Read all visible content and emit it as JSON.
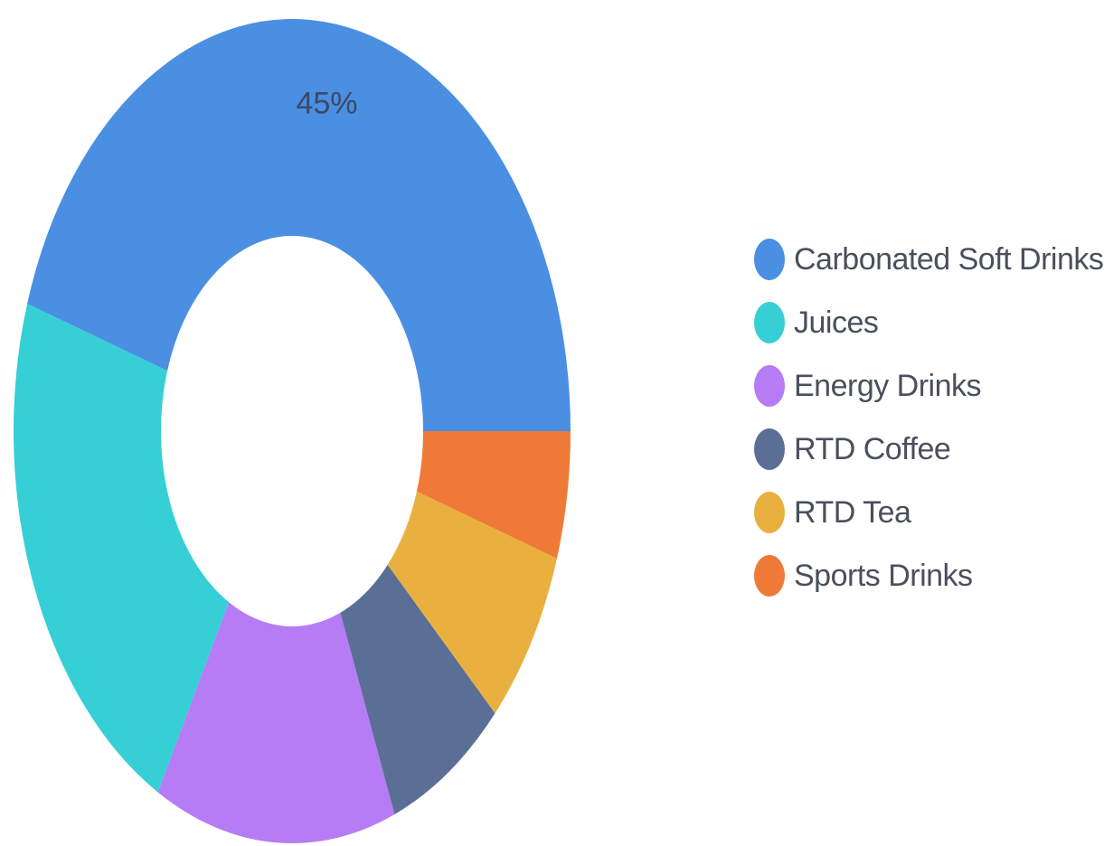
{
  "chart_data": {
    "type": "pie",
    "variant": "donut",
    "title": "",
    "categories": [
      "Carbonated Soft Drinks",
      "Juices",
      "Energy Drinks",
      "RTD Coffee",
      "RTD Tea",
      "Sports Drinks"
    ],
    "values": [
      45,
      22,
      14,
      7,
      7,
      5
    ],
    "unit": "%",
    "colors": [
      "#4a8fe2",
      "#36cfd6",
      "#b57cf5",
      "#5b6f96",
      "#e9b040",
      "#ef7a38"
    ],
    "data_labels": [
      "45%",
      "",
      "",
      "",
      "",
      ""
    ],
    "legend": {
      "position": "right",
      "entries": [
        "Carbonated Soft Drinks",
        "Juices",
        "Energy Drinks",
        "RTD Coffee",
        "RTD Tea",
        "Sports Drinks"
      ]
    }
  }
}
